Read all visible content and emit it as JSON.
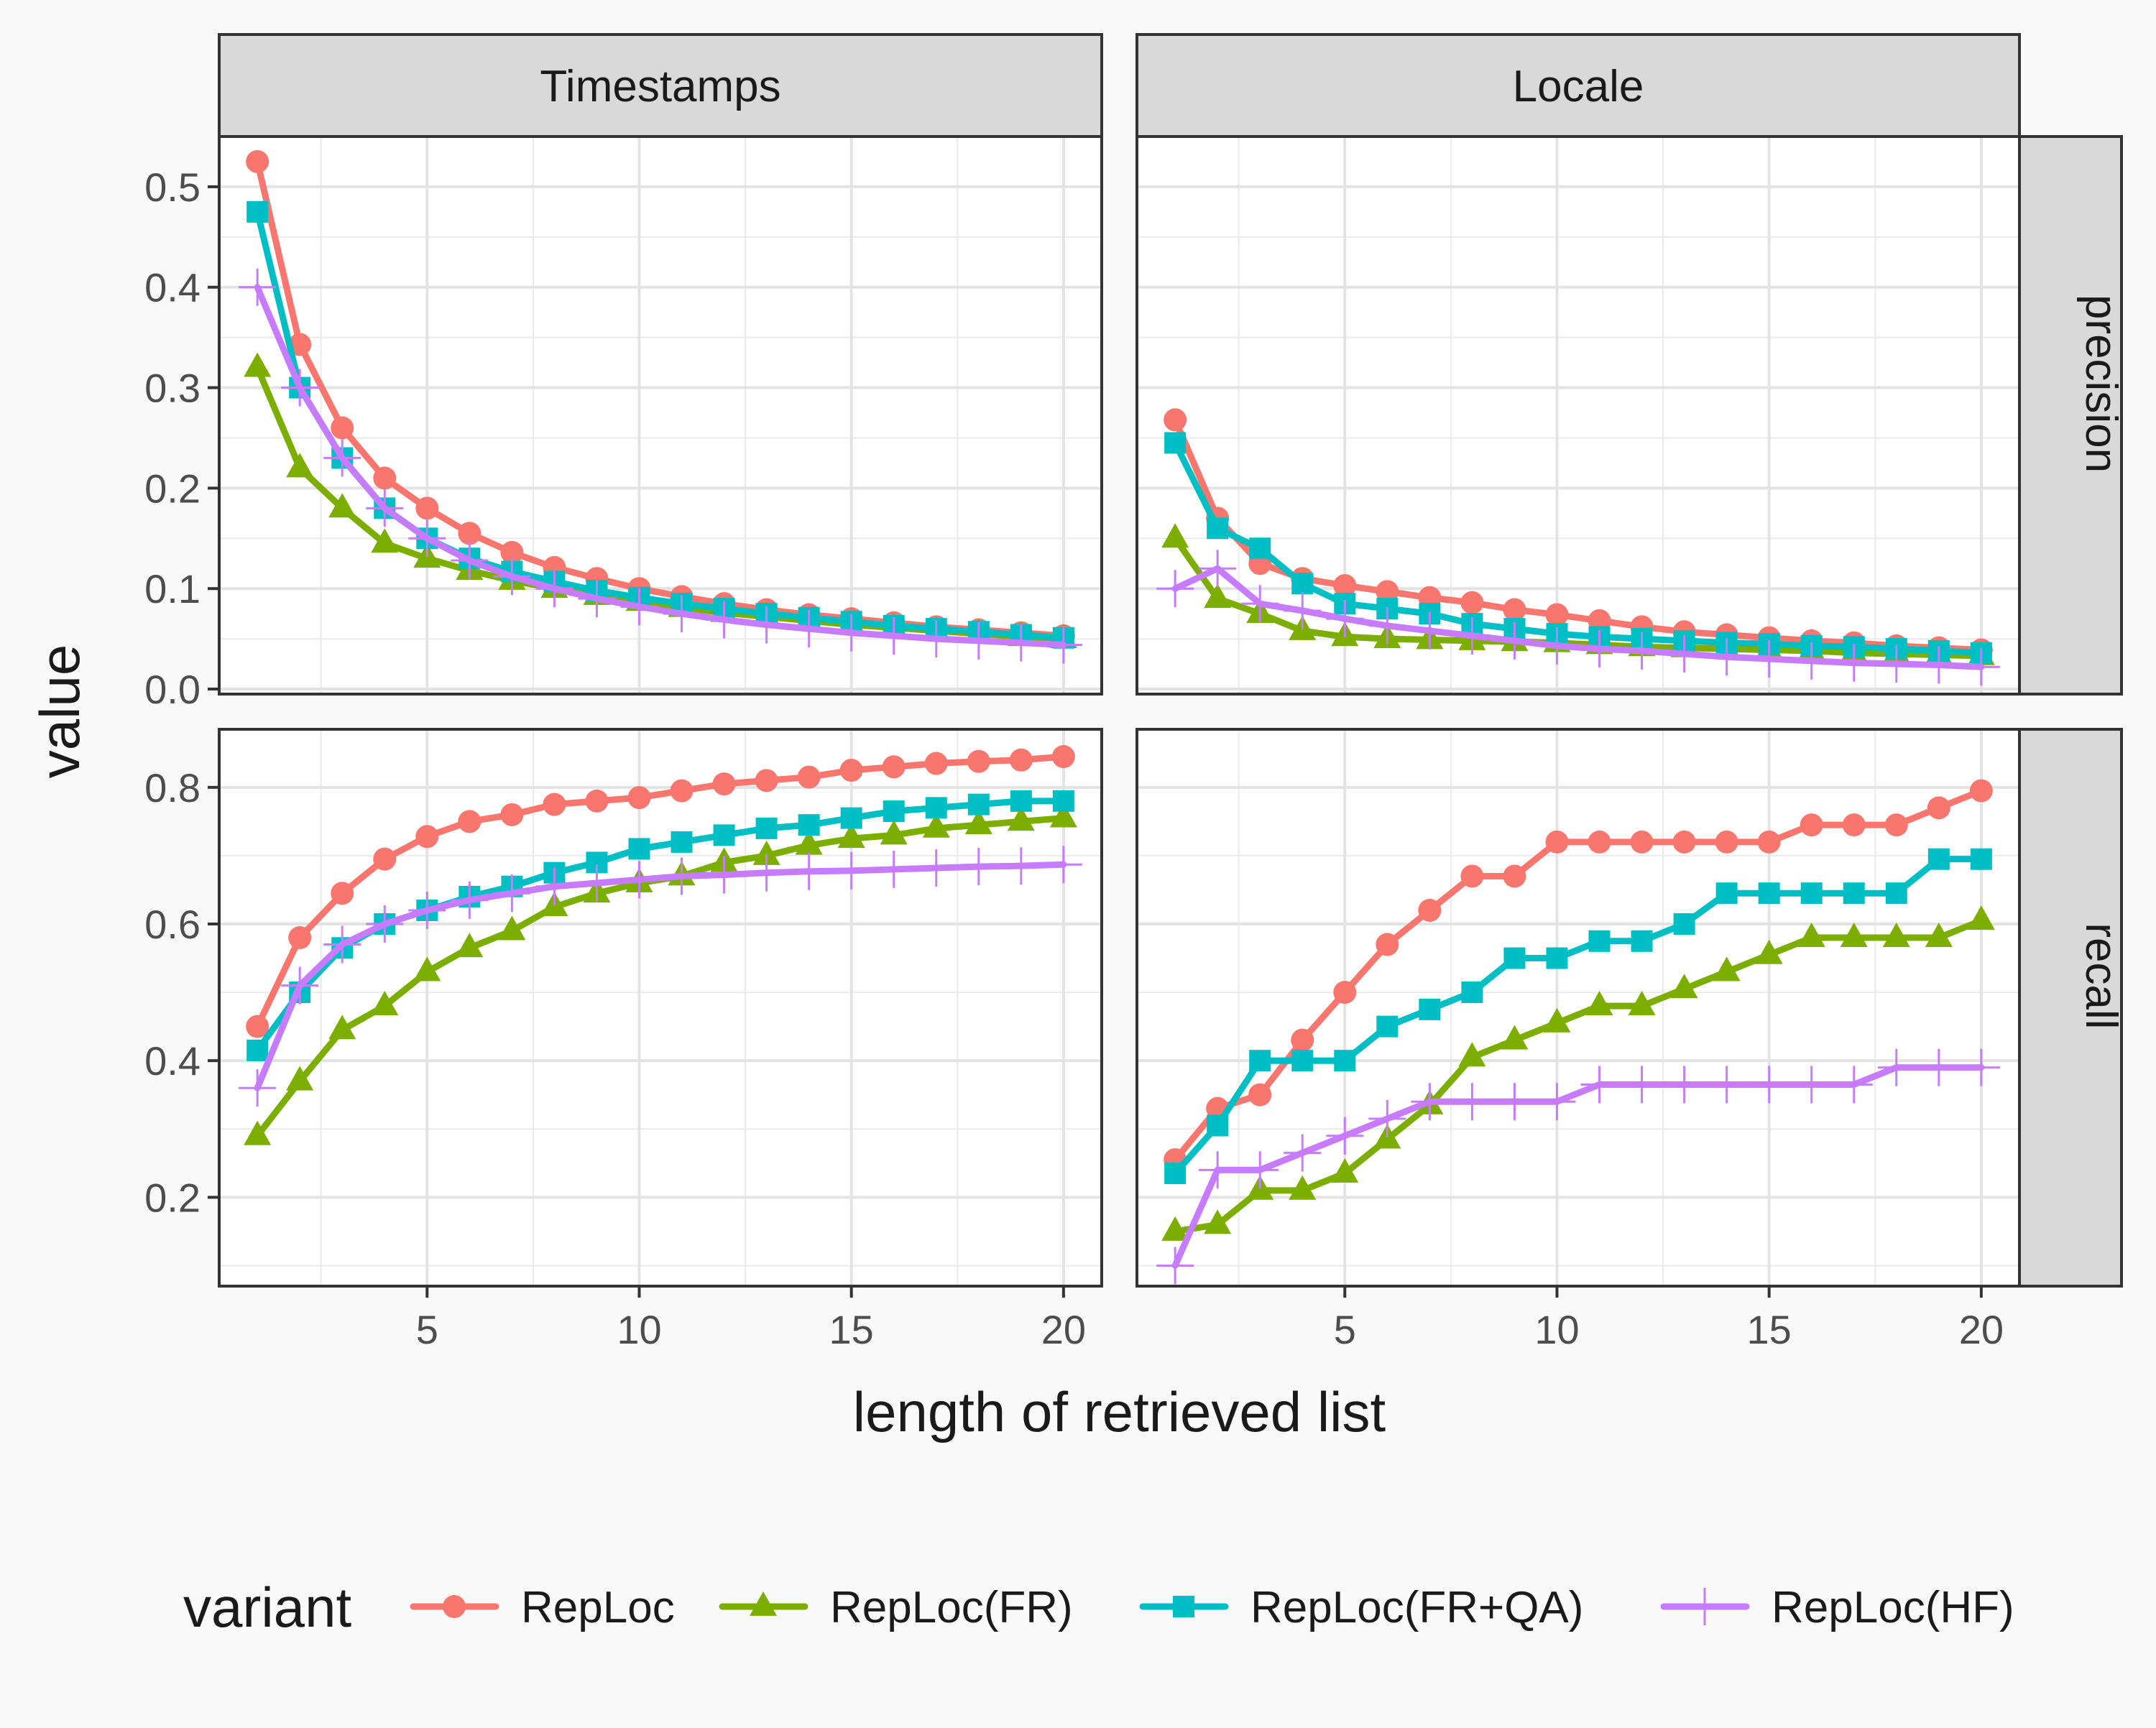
{
  "chart_data": {
    "type": "line",
    "xlabel": "length of retrieved list",
    "ylabel": "value",
    "x": [
      1,
      2,
      3,
      4,
      5,
      6,
      7,
      8,
      9,
      10,
      11,
      12,
      13,
      14,
      15,
      16,
      17,
      18,
      19,
      20
    ],
    "x_ticks": [
      5,
      10,
      15,
      20
    ],
    "xlim": [
      0.1,
      20.9
    ],
    "facet_columns": [
      "Timestamps",
      "Locale"
    ],
    "facet_rows": [
      {
        "label": "precision",
        "ylim": [
          -0.005,
          0.55
        ],
        "ticks": [
          0.0,
          0.1,
          0.2,
          0.3,
          0.4,
          0.5
        ],
        "tick_labels": [
          "0.0",
          "0.1",
          "0.2",
          "0.3",
          "0.4",
          "0.5"
        ]
      },
      {
        "label": "recall",
        "ylim": [
          0.07,
          0.885
        ],
        "ticks": [
          0.2,
          0.4,
          0.6,
          0.8
        ],
        "tick_labels": [
          "0.2",
          "0.4",
          "0.6",
          "0.8"
        ]
      }
    ],
    "legend": {
      "title": "variant",
      "position": "bottom"
    },
    "grid": true,
    "series_styles": [
      {
        "name": "RepLoc",
        "color": "#F8766D",
        "marker": "circle"
      },
      {
        "name": "RepLoc(FR)",
        "color": "#7CAE00",
        "marker": "triangle"
      },
      {
        "name": "RepLoc(FR+QA)",
        "color": "#00BFC4",
        "marker": "square"
      },
      {
        "name": "RepLoc(HF)",
        "color": "#C77CFF",
        "marker": "plus"
      }
    ],
    "panels": [
      {
        "column": "Timestamps",
        "row": "precision",
        "series": [
          {
            "name": "RepLoc",
            "values": [
              0.525,
              0.343,
              0.26,
              0.21,
              0.18,
              0.155,
              0.136,
              0.121,
              0.11,
              0.1,
              0.092,
              0.085,
              0.079,
              0.074,
              0.07,
              0.066,
              0.062,
              0.059,
              0.056,
              0.053
            ]
          },
          {
            "name": "RepLoc(FR)",
            "values": [
              0.32,
              0.22,
              0.18,
              0.145,
              0.13,
              0.118,
              0.108,
              0.1,
              0.093,
              0.087,
              0.081,
              0.076,
              0.072,
              0.068,
              0.064,
              0.061,
              0.058,
              0.055,
              0.052,
              0.05
            ]
          },
          {
            "name": "RepLoc(FR+QA)",
            "values": [
              0.475,
              0.3,
              0.23,
              0.18,
              0.15,
              0.13,
              0.117,
              0.107,
              0.098,
              0.091,
              0.085,
              0.08,
              0.075,
              0.071,
              0.067,
              0.063,
              0.06,
              0.057,
              0.054,
              0.051
            ]
          },
          {
            "name": "RepLoc(HF)",
            "values": [
              0.4,
              0.3,
              0.23,
              0.18,
              0.15,
              0.128,
              0.112,
              0.1,
              0.09,
              0.082,
              0.075,
              0.069,
              0.064,
              0.06,
              0.056,
              0.053,
              0.05,
              0.048,
              0.046,
              0.044
            ]
          }
        ]
      },
      {
        "column": "Locale",
        "row": "precision",
        "series": [
          {
            "name": "RepLoc",
            "values": [
              0.268,
              0.17,
              0.125,
              0.11,
              0.103,
              0.097,
              0.091,
              0.086,
              0.079,
              0.074,
              0.068,
              0.062,
              0.057,
              0.054,
              0.051,
              0.048,
              0.046,
              0.043,
              0.041,
              0.039
            ]
          },
          {
            "name": "RepLoc(FR)",
            "values": [
              0.15,
              0.09,
              0.075,
              0.058,
              0.052,
              0.05,
              0.049,
              0.048,
              0.047,
              0.046,
              0.044,
              0.042,
              0.041,
              0.04,
              0.039,
              0.038,
              0.036,
              0.035,
              0.034,
              0.033
            ]
          },
          {
            "name": "RepLoc(FR+QA)",
            "values": [
              0.245,
              0.16,
              0.14,
              0.105,
              0.085,
              0.08,
              0.075,
              0.065,
              0.06,
              0.055,
              0.052,
              0.05,
              0.048,
              0.046,
              0.045,
              0.043,
              0.042,
              0.04,
              0.038,
              0.036
            ]
          },
          {
            "name": "RepLoc(HF)",
            "values": [
              0.1,
              0.12,
              0.085,
              0.078,
              0.07,
              0.063,
              0.058,
              0.053,
              0.048,
              0.043,
              0.04,
              0.038,
              0.035,
              0.032,
              0.03,
              0.028,
              0.026,
              0.025,
              0.024,
              0.022
            ]
          }
        ]
      },
      {
        "column": "Timestamps",
        "row": "recall",
        "series": [
          {
            "name": "RepLoc",
            "values": [
              0.45,
              0.58,
              0.645,
              0.695,
              0.728,
              0.75,
              0.76,
              0.775,
              0.78,
              0.785,
              0.795,
              0.805,
              0.81,
              0.815,
              0.825,
              0.83,
              0.835,
              0.838,
              0.84,
              0.845
            ]
          },
          {
            "name": "RepLoc(FR)",
            "values": [
              0.29,
              0.37,
              0.445,
              0.48,
              0.53,
              0.565,
              0.59,
              0.625,
              0.645,
              0.66,
              0.67,
              0.69,
              0.7,
              0.715,
              0.725,
              0.73,
              0.74,
              0.745,
              0.75,
              0.755
            ]
          },
          {
            "name": "RepLoc(FR+QA)",
            "values": [
              0.415,
              0.5,
              0.565,
              0.6,
              0.62,
              0.64,
              0.655,
              0.675,
              0.69,
              0.71,
              0.72,
              0.73,
              0.74,
              0.745,
              0.755,
              0.765,
              0.77,
              0.775,
              0.78,
              0.78
            ]
          },
          {
            "name": "RepLoc(HF)",
            "values": [
              0.36,
              0.51,
              0.57,
              0.6,
              0.62,
              0.635,
              0.645,
              0.655,
              0.66,
              0.665,
              0.67,
              0.672,
              0.675,
              0.677,
              0.678,
              0.68,
              0.682,
              0.684,
              0.685,
              0.687
            ]
          }
        ]
      },
      {
        "column": "Locale",
        "row": "recall",
        "series": [
          {
            "name": "RepLoc",
            "values": [
              0.255,
              0.33,
              0.35,
              0.43,
              0.5,
              0.57,
              0.62,
              0.67,
              0.67,
              0.72,
              0.72,
              0.72,
              0.72,
              0.72,
              0.72,
              0.745,
              0.745,
              0.745,
              0.77,
              0.795
            ]
          },
          {
            "name": "RepLoc(FR)",
            "values": [
              0.15,
              0.16,
              0.21,
              0.21,
              0.235,
              0.285,
              0.335,
              0.405,
              0.43,
              0.455,
              0.48,
              0.48,
              0.505,
              0.53,
              0.555,
              0.58,
              0.58,
              0.58,
              0.58,
              0.605
            ]
          },
          {
            "name": "RepLoc(FR+QA)",
            "values": [
              0.235,
              0.305,
              0.4,
              0.4,
              0.4,
              0.45,
              0.475,
              0.5,
              0.55,
              0.55,
              0.575,
              0.575,
              0.6,
              0.645,
              0.645,
              0.645,
              0.645,
              0.645,
              0.695,
              0.695
            ]
          },
          {
            "name": "RepLoc(HF)",
            "values": [
              0.1,
              0.24,
              0.24,
              0.265,
              0.29,
              0.315,
              0.34,
              0.34,
              0.34,
              0.34,
              0.365,
              0.365,
              0.365,
              0.365,
              0.365,
              0.365,
              0.365,
              0.39,
              0.39,
              0.39
            ]
          }
        ]
      }
    ]
  }
}
